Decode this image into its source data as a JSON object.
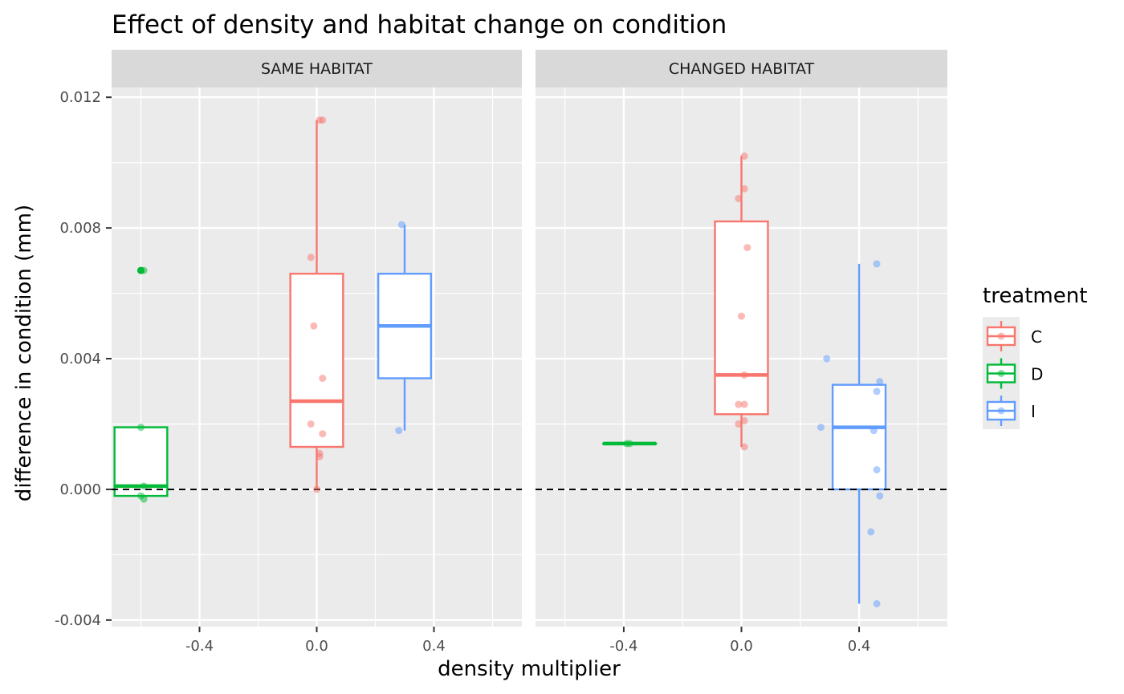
{
  "chart_data": {
    "type": "boxplot",
    "title": "Effect of density and habitat change on condition",
    "xlabel": "density multiplier",
    "ylabel": "difference in condition (mm)",
    "xlim": [
      -0.7,
      0.7
    ],
    "ylim": [
      -0.0042,
      0.0123
    ],
    "x_ticks": [
      -0.4,
      0.0,
      0.4
    ],
    "x_tick_labels": [
      "-0.4",
      "0.0",
      "0.4"
    ],
    "y_ticks": [
      -0.004,
      0.0,
      0.004,
      0.008,
      0.012
    ],
    "y_tick_labels": [
      "-0.004",
      "0.000",
      "0.004",
      "0.008",
      "0.012"
    ],
    "reference_line": {
      "y": 0,
      "style": "dashed"
    },
    "grid": true,
    "legend": {
      "title": "treatment",
      "position": "right",
      "entries": [
        {
          "name": "C",
          "color": "#F8766D"
        },
        {
          "name": "D",
          "color": "#00BA38"
        },
        {
          "name": "I",
          "color": "#619CFF"
        }
      ]
    },
    "facets": [
      {
        "label": "SAME HABITAT",
        "groups": [
          {
            "treatment": "D",
            "x": -0.6,
            "box": {
              "lower_whisker": -0.0002,
              "q1": -0.0002,
              "median": 0.0001,
              "q3": 0.0019,
              "upper_whisker": 0.0019
            },
            "outliers": [
              0.0067
            ],
            "points": [
              {
                "x": -0.6,
                "y": 0.0067
              },
              {
                "x": -0.59,
                "y": 0.0067
              },
              {
                "x": -0.6,
                "y": 0.0019
              },
              {
                "x": -0.59,
                "y": 0.0001
              },
              {
                "x": -0.6,
                "y": -0.0002
              },
              {
                "x": -0.59,
                "y": -0.0003
              }
            ]
          },
          {
            "treatment": "C",
            "x": 0.0,
            "box": {
              "lower_whisker": 0.0,
              "q1": 0.0013,
              "median": 0.0027,
              "q3": 0.0066,
              "upper_whisker": 0.0113
            },
            "outliers": [],
            "points": [
              {
                "x": 0.02,
                "y": 0.0113
              },
              {
                "x": 0.01,
                "y": 0.0113
              },
              {
                "x": -0.02,
                "y": 0.0071
              },
              {
                "x": -0.01,
                "y": 0.005
              },
              {
                "x": 0.02,
                "y": 0.0034
              },
              {
                "x": -0.02,
                "y": 0.002
              },
              {
                "x": 0.02,
                "y": 0.0017
              },
              {
                "x": 0.01,
                "y": 0.0011
              },
              {
                "x": 0.01,
                "y": 0.001
              },
              {
                "x": 0.0,
                "y": 0.0
              }
            ]
          },
          {
            "treatment": "I",
            "x": 0.3,
            "box": {
              "lower_whisker": 0.0018,
              "q1": 0.0034,
              "median": 0.005,
              "q3": 0.0066,
              "upper_whisker": 0.0081
            },
            "outliers": [],
            "points": [
              {
                "x": 0.29,
                "y": 0.0081
              },
              {
                "x": 0.28,
                "y": 0.0018
              }
            ]
          }
        ]
      },
      {
        "label": "CHANGED HABITAT",
        "groups": [
          {
            "treatment": "D",
            "x": -0.38,
            "box": {
              "lower_whisker": 0.0014,
              "q1": 0.0014,
              "median": 0.0014,
              "q3": 0.0014,
              "upper_whisker": 0.0014
            },
            "outliers": [],
            "points": [
              {
                "x": -0.39,
                "y": 0.0014
              },
              {
                "x": -0.38,
                "y": 0.0014
              }
            ]
          },
          {
            "treatment": "C",
            "x": 0.0,
            "box": {
              "lower_whisker": 0.0013,
              "q1": 0.0023,
              "median": 0.0035,
              "q3": 0.0082,
              "upper_whisker": 0.0102
            },
            "outliers": [],
            "points": [
              {
                "x": 0.01,
                "y": 0.0102
              },
              {
                "x": 0.01,
                "y": 0.0092
              },
              {
                "x": -0.01,
                "y": 0.0089
              },
              {
                "x": 0.02,
                "y": 0.0074
              },
              {
                "x": 0.0,
                "y": 0.0053
              },
              {
                "x": 0.01,
                "y": 0.0035
              },
              {
                "x": -0.01,
                "y": 0.0026
              },
              {
                "x": 0.01,
                "y": 0.0026
              },
              {
                "x": 0.01,
                "y": 0.0021
              },
              {
                "x": -0.01,
                "y": 0.002
              },
              {
                "x": 0.01,
                "y": 0.0013
              }
            ]
          },
          {
            "treatment": "I",
            "x": 0.4,
            "box": {
              "lower_whisker": -0.0035,
              "q1": 0.0,
              "median": 0.0019,
              "q3": 0.0032,
              "upper_whisker": 0.0069
            },
            "outliers": [],
            "points": [
              {
                "x": 0.46,
                "y": 0.0069
              },
              {
                "x": 0.29,
                "y": 0.004
              },
              {
                "x": 0.47,
                "y": 0.0033
              },
              {
                "x": 0.46,
                "y": 0.003
              },
              {
                "x": 0.27,
                "y": 0.0019
              },
              {
                "x": 0.45,
                "y": 0.0018
              },
              {
                "x": 0.46,
                "y": 0.0006
              },
              {
                "x": 0.47,
                "y": -0.0002
              },
              {
                "x": 0.44,
                "y": -0.0013
              },
              {
                "x": 0.46,
                "y": -0.0035
              }
            ]
          }
        ]
      }
    ]
  }
}
